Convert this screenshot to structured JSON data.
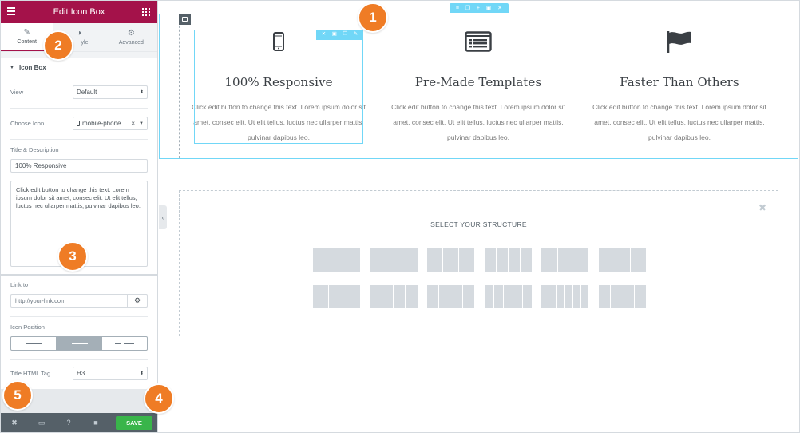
{
  "panel": {
    "title": "Edit Icon Box",
    "tabs": [
      {
        "label": "Content",
        "icon": "pencil-icon"
      },
      {
        "label": "Style",
        "visible_label": "yle",
        "icon": "half-circle-icon"
      },
      {
        "label": "Advanced",
        "icon": "gear-icon"
      }
    ],
    "section_title": "Icon Box",
    "view": {
      "label": "View",
      "value": "Default"
    },
    "choose_icon": {
      "label": "Choose Icon",
      "value": "mobile-phone"
    },
    "title_desc": {
      "label": "Title & Description",
      "title_value": "100% Responsive",
      "description_value": "Click edit button to change this text. Lorem ipsum dolor sit amet, consec elit. Ut elit tellus, luctus nec ullarper mattis, pulvinar dapibus leo."
    },
    "link": {
      "label": "Link to",
      "placeholder": "http://your-link.com"
    },
    "icon_position": {
      "label": "Icon Position",
      "options": [
        "left",
        "top",
        "right"
      ],
      "selected": "top"
    },
    "title_tag": {
      "label": "Title HTML Tag",
      "value": "H3"
    },
    "footer": {
      "save_label": "SAVE"
    }
  },
  "preview": {
    "icon_boxes": [
      {
        "icon": "mobile-phone-icon",
        "title": "100% Responsive",
        "text": "Click edit button to change this text. Lorem ipsum dolor sit amet, consec elit. Ut elit tellus, luctus nec ullarper mattis, pulvinar dapibus leo."
      },
      {
        "icon": "list-alt-icon",
        "title": "Pre-Made Templates",
        "text": "Click edit button to change this text. Lorem ipsum dolor sit amet, consec elit. Ut elit tellus, luctus nec ullarper mattis, pulvinar dapibus leo."
      },
      {
        "icon": "flag-icon",
        "title": "Faster Than Others",
        "text": "Click edit button to change this text. Lorem ipsum dolor sit amet, consec elit. Ut elit tellus, luctus nec ullarper mattis, pulvinar dapibus leo."
      }
    ],
    "structure_title": "SELECT YOUR STRUCTURE"
  },
  "badges": [
    "1",
    "2",
    "3",
    "4",
    "5"
  ],
  "colors": {
    "brand": "#a4124a",
    "accent": "#71d7f7",
    "badge": "#ef7c25",
    "save": "#39b54a",
    "footer": "#556068"
  }
}
